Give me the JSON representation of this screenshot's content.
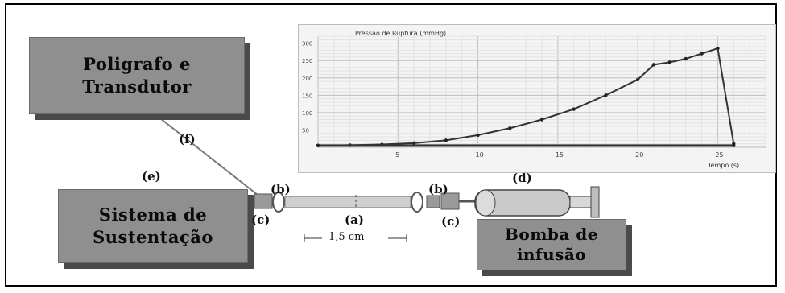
{
  "boxes": {
    "poligrafo": {
      "line1": "Poligrafo e",
      "line2": "Transdutor"
    },
    "sistema": {
      "line1": "Sistema de",
      "line2": "Sustentação"
    },
    "bomba": {
      "line1": "Bomba de",
      "line2": "infusão"
    }
  },
  "labels": {
    "f": "(f)",
    "e": "(e)",
    "b_left": "(b)",
    "b_right": "(b)",
    "c_left": "(c)",
    "c_right": "(c)",
    "a": "(a)",
    "d": "(d)",
    "distance": "1,5 cm"
  },
  "colors": {
    "box_fill": "#8f8f8f",
    "box_shadow": "#4a4a4a",
    "trace": "#333333"
  },
  "chart_data": {
    "type": "line",
    "title": "Pressão de Ruptura (mmHg)",
    "xlabel": "Tempo (s)",
    "ylabel": "",
    "x_ticks": [
      "5",
      "10",
      "15",
      "20",
      "25"
    ],
    "y_ticks": [
      "300",
      "250",
      "200",
      "150",
      "100",
      "50"
    ],
    "grid": true,
    "series": [
      {
        "x": [
          0,
          2,
          4,
          6,
          8,
          10,
          12,
          14,
          16,
          18,
          20,
          21,
          22,
          23,
          24,
          25,
          26
        ],
        "y": [
          5,
          6,
          8,
          12,
          20,
          35,
          55,
          80,
          110,
          150,
          195,
          238,
          245,
          255,
          270,
          285,
          10
        ]
      },
      {
        "x": [
          0,
          26
        ],
        "y": [
          5,
          5
        ]
      }
    ]
  }
}
